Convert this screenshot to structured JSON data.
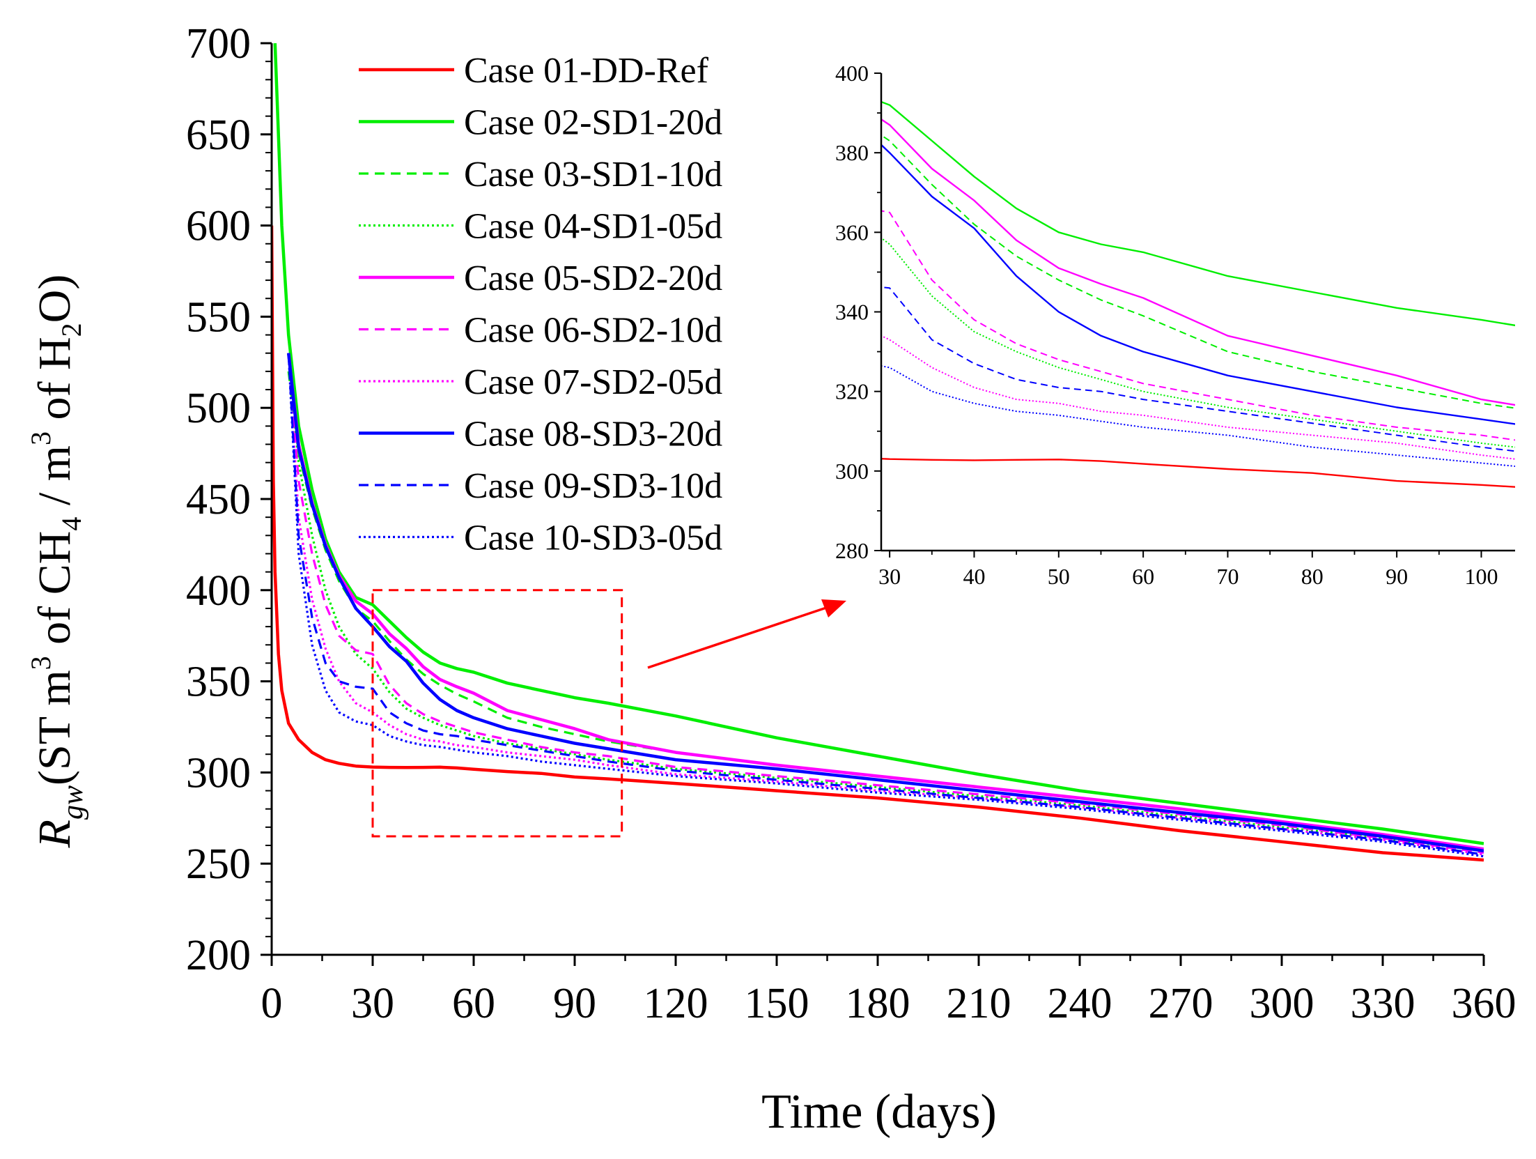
{
  "chart_data": [
    {
      "id": "main",
      "type": "line",
      "xlabel": "Time (days)",
      "ylabel_parts": {
        "R": "R",
        "gw": "gw",
        "open": "(ST m",
        "sup1": "3",
        "mid1": " of CH",
        "sub1": "4",
        "mid2": " / m",
        "sup2": "3",
        "mid3": " of H",
        "sub2": "2",
        "close": "O)"
      },
      "xlim": [
        0,
        360
      ],
      "ylim": [
        200,
        700
      ],
      "xticks": [
        "0",
        "30",
        "60",
        "90",
        "120",
        "150",
        "180",
        "210",
        "240",
        "270",
        "300",
        "330",
        "360"
      ],
      "xtick_values": [
        0,
        30,
        60,
        90,
        120,
        150,
        180,
        210,
        240,
        270,
        300,
        330,
        360
      ],
      "yticks": [
        "200",
        "250",
        "300",
        "350",
        "400",
        "450",
        "500",
        "550",
        "600",
        "650",
        "700"
      ],
      "ytick_values": [
        200,
        250,
        300,
        350,
        400,
        450,
        500,
        550,
        600,
        650,
        700
      ],
      "zoom_box": {
        "x": [
          30,
          104
        ],
        "y": [
          265,
          400
        ]
      },
      "series": [
        {
          "name": "Case 01-DD-Ref",
          "color": "#ff0000",
          "dash": "solid",
          "x": [
            0,
            0.5,
            1,
            2,
            3,
            5,
            8,
            12,
            16,
            20,
            25,
            30,
            35,
            40,
            45,
            50,
            55,
            60,
            70,
            80,
            90,
            100,
            120,
            150,
            180,
            210,
            240,
            270,
            300,
            330,
            360
          ],
          "y": [
            600,
            460,
            410,
            365,
            345,
            327,
            318,
            311,
            307,
            305,
            303.5,
            303,
            302.8,
            302.7,
            302.8,
            302.9,
            302.5,
            301.8,
            300.5,
            299.5,
            297.5,
            296.5,
            294,
            290,
            286,
            281,
            275,
            268,
            262,
            256,
            252
          ]
        },
        {
          "name": "Case 02-SD1-20d",
          "color": "#00ee00",
          "dash": "solid",
          "x": [
            1,
            2,
            3,
            5,
            8,
            12,
            16,
            20,
            25,
            30,
            35,
            40,
            45,
            50,
            55,
            60,
            70,
            80,
            90,
            100,
            120,
            150,
            180,
            210,
            240,
            270,
            300,
            330,
            360
          ],
          "y": [
            700,
            650,
            600,
            540,
            490,
            455,
            428,
            410,
            396,
            392,
            383,
            374,
            366,
            360,
            357,
            355,
            349,
            345,
            341,
            338,
            331,
            319,
            309,
            299,
            290,
            283,
            276,
            269,
            261
          ]
        },
        {
          "name": "Case 03-SD1-10d",
          "color": "#00ee00",
          "dash": "dash",
          "x": [
            5,
            8,
            12,
            16,
            20,
            25,
            30,
            35,
            40,
            45,
            50,
            55,
            60,
            70,
            80,
            90,
            100,
            120,
            150,
            180,
            210,
            240,
            270,
            300,
            330,
            360
          ],
          "y": [
            520,
            475,
            445,
            422,
            405,
            390,
            383,
            372,
            362,
            354,
            348,
            343,
            339,
            330,
            325,
            321,
            317,
            311,
            304,
            298,
            292,
            286,
            280,
            273,
            266,
            258
          ]
        },
        {
          "name": "Case 04-SD1-05d",
          "color": "#00ee00",
          "dash": "dot",
          "x": [
            5,
            8,
            12,
            16,
            20,
            25,
            30,
            35,
            40,
            45,
            50,
            55,
            60,
            70,
            80,
            90,
            100,
            120,
            150,
            180,
            210,
            240,
            270,
            300,
            330,
            360
          ],
          "y": [
            530,
            470,
            430,
            400,
            380,
            365,
            357,
            344,
            335,
            330,
            326,
            323,
            320,
            316,
            313,
            310,
            307,
            302,
            297,
            292,
            287,
            282,
            276,
            270,
            264,
            257
          ]
        },
        {
          "name": "Case 05-SD2-20d",
          "color": "#ff00ff",
          "dash": "solid",
          "x": [
            5,
            8,
            12,
            16,
            20,
            25,
            30,
            35,
            40,
            45,
            50,
            55,
            60,
            70,
            80,
            90,
            100,
            120,
            150,
            180,
            210,
            240,
            270,
            300,
            330,
            360
          ],
          "y": [
            530,
            480,
            448,
            425,
            408,
            394,
            387,
            376,
            368,
            358,
            351,
            347,
            343.5,
            334,
            329,
            324,
            318,
            311,
            304,
            298,
            292,
            286,
            280,
            273,
            266,
            258
          ]
        },
        {
          "name": "Case 06-SD2-10d",
          "color": "#ff00ff",
          "dash": "dash",
          "x": [
            5,
            8,
            12,
            16,
            20,
            25,
            30,
            35,
            40,
            45,
            50,
            55,
            60,
            70,
            80,
            90,
            100,
            120,
            150,
            180,
            210,
            240,
            270,
            300,
            330,
            360
          ],
          "y": [
            530,
            460,
            420,
            392,
            375,
            367,
            365,
            348,
            338,
            332,
            328,
            325,
            322,
            318,
            314,
            311,
            309,
            303,
            298,
            293,
            288,
            283,
            277,
            271,
            264,
            256
          ]
        },
        {
          "name": "Case 07-SD2-05d",
          "color": "#ff00ff",
          "dash": "dot",
          "x": [
            5,
            8,
            12,
            16,
            20,
            25,
            30,
            35,
            40,
            45,
            50,
            55,
            60,
            70,
            80,
            90,
            100,
            120,
            150,
            180,
            210,
            240,
            270,
            300,
            330,
            360
          ],
          "y": [
            530,
            440,
            395,
            368,
            350,
            338,
            333,
            326,
            321,
            318,
            317,
            315,
            314,
            311,
            309,
            307,
            304,
            299,
            295,
            290,
            286,
            281,
            275,
            269,
            263,
            255
          ]
        },
        {
          "name": "Case 08-SD3-20d",
          "color": "#0000ff",
          "dash": "solid",
          "x": [
            5,
            8,
            12,
            16,
            20,
            25,
            30,
            35,
            40,
            45,
            50,
            55,
            60,
            70,
            80,
            90,
            100,
            120,
            150,
            180,
            210,
            240,
            270,
            300,
            330,
            360
          ],
          "y": [
            530,
            478,
            447,
            424,
            407,
            390,
            380,
            369,
            361,
            349,
            340,
            334,
            330,
            324,
            320,
            316,
            313,
            307,
            302,
            296,
            290,
            284,
            278,
            272,
            265,
            257
          ]
        },
        {
          "name": "Case 09-SD3-10d",
          "color": "#0000ff",
          "dash": "dash",
          "x": [
            5,
            8,
            12,
            16,
            20,
            25,
            30,
            35,
            40,
            45,
            50,
            55,
            60,
            70,
            80,
            90,
            100,
            120,
            150,
            180,
            210,
            240,
            270,
            300,
            330,
            360
          ],
          "y": [
            530,
            430,
            385,
            360,
            350,
            347,
            346,
            333,
            327,
            323,
            321,
            320,
            318,
            315,
            312,
            309,
            306,
            301,
            296,
            291,
            286,
            281,
            275,
            269,
            263,
            255
          ]
        },
        {
          "name": "Case 10-SD3-05d",
          "color": "#0000ff",
          "dash": "dot",
          "x": [
            5,
            8,
            12,
            16,
            20,
            25,
            30,
            35,
            40,
            45,
            50,
            55,
            60,
            70,
            80,
            90,
            100,
            120,
            150,
            180,
            210,
            240,
            270,
            300,
            330,
            360
          ],
          "y": [
            530,
            420,
            370,
            345,
            333,
            328,
            326,
            320,
            317,
            315,
            314,
            312.5,
            311,
            309,
            306,
            304,
            302,
            298,
            294,
            289,
            285,
            280,
            274,
            268,
            262,
            254
          ]
        }
      ]
    },
    {
      "id": "inset",
      "type": "line",
      "xlim": [
        29,
        104
      ],
      "ylim": [
        280,
        400
      ],
      "xticks": [
        "30",
        "40",
        "50",
        "60",
        "70",
        "80",
        "90",
        "100"
      ],
      "xtick_values": [
        30,
        40,
        50,
        60,
        70,
        80,
        90,
        100
      ],
      "yticks": [
        "280",
        "300",
        "320",
        "340",
        "360",
        "380",
        "400"
      ],
      "ytick_values": [
        280,
        300,
        320,
        340,
        360,
        380,
        400
      ],
      "series_ref": "main"
    }
  ]
}
